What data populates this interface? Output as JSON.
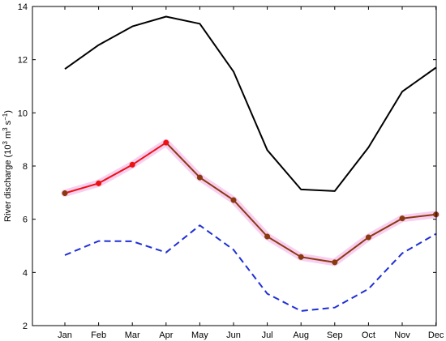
{
  "chart_data": {
    "type": "line",
    "title": "",
    "xlabel": "",
    "ylabel": {
      "prefix": "River discharge (10",
      "exp1": "3",
      "mid1": " m",
      "exp2": "3",
      "mid2": " s",
      "exp3": "−1",
      "suffix": ")"
    },
    "categories": [
      "Jan",
      "Feb",
      "Mar",
      "Apr",
      "May",
      "Jun",
      "Jul",
      "Aug",
      "Sep",
      "Oct",
      "Nov",
      "Dec"
    ],
    "ylim": [
      2,
      14
    ],
    "yticks": [
      "2",
      "4",
      "6",
      "8",
      "10",
      "12",
      "14"
    ],
    "grid": false,
    "legend": "none",
    "series": [
      {
        "style": "solid-black",
        "color": "#000000",
        "values": [
          11.65,
          12.55,
          13.25,
          13.62,
          13.35,
          11.55,
          8.6,
          7.12,
          7.06,
          8.7,
          10.8,
          11.7
        ]
      },
      {
        "style": "solid-red-brown-markers",
        "color": "#8B3A0F",
        "segment_color": "#ee1111",
        "highlight_color": "#ee1111",
        "highlight_count": 4,
        "band_color": "#f7c7ee",
        "values": [
          6.98,
          7.35,
          8.05,
          8.88,
          7.57,
          6.72,
          5.35,
          4.58,
          4.38,
          5.32,
          6.03,
          6.18
        ]
      },
      {
        "style": "dashed-blue",
        "color": "#1f2fd6",
        "values": [
          4.65,
          5.18,
          5.17,
          4.75,
          5.77,
          4.85,
          3.2,
          2.55,
          2.68,
          3.38,
          4.72,
          5.45
        ]
      }
    ]
  }
}
